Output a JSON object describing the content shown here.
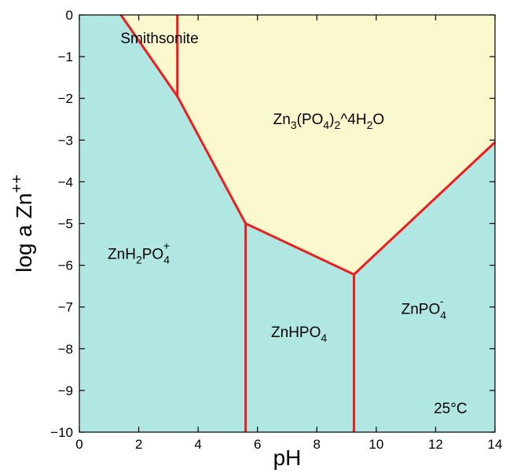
{
  "chart_data": {
    "type": "area",
    "xlabel": "pH",
    "ylabel_parts": [
      {
        "t": "log a Zn",
        "s": "n"
      },
      {
        "t": "++",
        "s": "sup"
      }
    ],
    "xlim": [
      0,
      14
    ],
    "ylim": [
      -10,
      0
    ],
    "x_ticks": [
      0,
      2,
      4,
      6,
      8,
      10,
      12,
      14
    ],
    "y_ticks": [
      0,
      -1,
      -2,
      -3,
      -4,
      -5,
      -6,
      -7,
      -8,
      -9,
      -10
    ],
    "x_tick_labels": [
      "0",
      "2",
      "4",
      "6",
      "8",
      "10",
      "12",
      "14"
    ],
    "y_tick_labels": [
      "0",
      "−1",
      "−2",
      "−3",
      "−4",
      "−5",
      "−6",
      "−7",
      "−8",
      "−9",
      "−10"
    ],
    "grid": false,
    "colors": {
      "aqueous_field": "#b1e7e3",
      "mineral_field": "#fcf8cd",
      "boundary": "#ee1c1c"
    },
    "regions": [
      {
        "id": "smithsonite",
        "phase": "mineral",
        "polygon": [
          [
            1.4,
            0
          ],
          [
            3.3,
            0
          ],
          [
            3.3,
            -1.95
          ]
        ],
        "label_parts": [
          {
            "t": "Smithsonite",
            "s": "n"
          }
        ],
        "label_at": [
          2.7,
          -0.68
        ]
      },
      {
        "id": "zn3po4",
        "phase": "mineral",
        "polygon": [
          [
            3.3,
            0
          ],
          [
            14,
            0
          ],
          [
            14,
            -3.05
          ],
          [
            9.25,
            -6.22
          ],
          [
            5.6,
            -5.0
          ],
          [
            3.3,
            -1.95
          ]
        ],
        "label_parts": [
          {
            "t": "Zn",
            "s": "n"
          },
          {
            "t": "3",
            "s": "sub"
          },
          {
            "t": "(PO",
            "s": "n"
          },
          {
            "t": "4",
            "s": "sub"
          },
          {
            "t": ")",
            "s": "n"
          },
          {
            "t": "2",
            "s": "sub"
          },
          {
            "t": "^4H",
            "s": "n"
          },
          {
            "t": "2",
            "s": "sub"
          },
          {
            "t": "O",
            "s": "n"
          }
        ],
        "label_at": [
          8.4,
          -2.62
        ]
      },
      {
        "id": "znh2po4",
        "phase": "aqueous",
        "label_parts": [
          {
            "t": "ZnH",
            "s": "n"
          },
          {
            "t": "2",
            "s": "sub"
          },
          {
            "t": "PO",
            "s": "n"
          },
          {
            "t": "4",
            "s": "subsup",
            "sup": "+"
          }
        ],
        "label_at": [
          2.0,
          -5.85
        ]
      },
      {
        "id": "znhpo4",
        "phase": "aqueous",
        "label_parts": [
          {
            "t": "ZnHPO",
            "s": "n"
          },
          {
            "t": "4",
            "s": "sub"
          }
        ],
        "label_at": [
          7.4,
          -7.72
        ]
      },
      {
        "id": "znpo4",
        "phase": "aqueous",
        "label_parts": [
          {
            "t": "ZnPO",
            "s": "n"
          },
          {
            "t": "4",
            "s": "subsup",
            "sup": "-"
          }
        ],
        "label_at": [
          11.6,
          -7.17
        ]
      }
    ],
    "boundaries": [
      {
        "points": [
          [
            1.4,
            0
          ],
          [
            3.3,
            -1.95
          ],
          [
            5.6,
            -5.0
          ],
          [
            9.25,
            -6.22
          ],
          [
            14,
            -3.05
          ]
        ]
      },
      {
        "points": [
          [
            3.3,
            0
          ],
          [
            3.3,
            -1.95
          ]
        ]
      },
      {
        "points": [
          [
            5.6,
            -5.0
          ],
          [
            5.6,
            -10
          ]
        ]
      },
      {
        "points": [
          [
            9.25,
            -6.22
          ],
          [
            9.25,
            -10
          ]
        ]
      }
    ],
    "annotation": {
      "text": "25°C",
      "at": [
        12.5,
        -9.55
      ]
    }
  }
}
